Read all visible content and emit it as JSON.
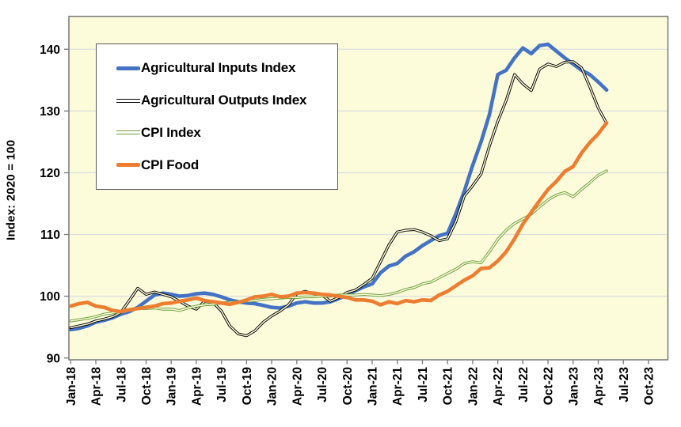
{
  "figure": {
    "background": "#FFFFFF",
    "plot_background": "#FCFCDB",
    "frame_color": "#7F7F7F",
    "grid_color": "#DCDCE0",
    "tick_color": "#7F7F7F",
    "legend_border_color": "#595959"
  },
  "chart_data": {
    "type": "line",
    "title": "",
    "ylabel": "Index: 2020 = 100",
    "ylim": [
      90,
      145.3
    ],
    "y_ticks": [
      90,
      100,
      110,
      120,
      130,
      140
    ],
    "x_frequency": "monthly",
    "x_start": "Jan-18",
    "x_end": "May-23",
    "x_tick_labels": [
      "Jan-18",
      "Apr-18",
      "Jul-18",
      "Oct-18",
      "Jan-19",
      "Apr-19",
      "Jul-19",
      "Oct-19",
      "Jan-20",
      "Apr-20",
      "Jul-20",
      "Oct-20",
      "Jan-21",
      "Apr-21",
      "Jul-21",
      "Oct-21",
      "Jan-22",
      "Apr-22",
      "Jul-22",
      "Oct-22",
      "Jan-23",
      "Apr-23",
      "Jul-23",
      "Oct-23"
    ],
    "grid": "horizontal",
    "legend_position": "top-left",
    "series": [
      {
        "name": "Agricultural Inputs Index",
        "color": "#4472C4",
        "style": "thick",
        "values": [
          94.6,
          94.8,
          95.2,
          95.8,
          96.1,
          96.5,
          97.1,
          97.5,
          98.2,
          99.2,
          100.2,
          100.5,
          100.3,
          100.0,
          100.1,
          100.4,
          100.5,
          100.3,
          99.9,
          99.4,
          99.1,
          98.9,
          98.8,
          98.5,
          98.2,
          98.1,
          98.4,
          98.9,
          99.1,
          98.9,
          98.9,
          99.1,
          99.6,
          100.2,
          100.9,
          101.5,
          102.0,
          103.8,
          104.9,
          105.3,
          106.5,
          107.2,
          108.2,
          109.0,
          109.8,
          110.2,
          113.4,
          117.0,
          121.2,
          125.0,
          129.4,
          135.9,
          136.6,
          138.6,
          140.2,
          139.3,
          140.6,
          140.8,
          139.7,
          138.6,
          137.6,
          136.6,
          135.9,
          134.7,
          133.4
        ]
      },
      {
        "name": "Agricultural Outputs Index",
        "color": "#000000",
        "style": "double",
        "values": [
          94.9,
          95.2,
          95.5,
          96.0,
          96.3,
          96.7,
          97.4,
          99.3,
          101.3,
          100.3,
          100.7,
          100.3,
          99.9,
          99.2,
          98.4,
          97.9,
          99.2,
          99.0,
          97.6,
          95.2,
          93.9,
          93.6,
          94.4,
          95.8,
          96.8,
          97.6,
          98.6,
          100.4,
          100.8,
          100.4,
          100.2,
          99.2,
          99.8,
          100.6,
          101.0,
          101.9,
          102.9,
          105.6,
          108.3,
          110.4,
          110.7,
          110.8,
          110.4,
          109.8,
          109.0,
          109.3,
          112.1,
          116.2,
          117.9,
          119.8,
          124.3,
          128.3,
          131.7,
          135.9,
          134.4,
          133.3,
          136.8,
          137.6,
          137.2,
          137.9,
          138.0,
          137.0,
          133.9,
          130.5,
          128.0
        ]
      },
      {
        "name": "CPI Index",
        "color": "#699B3C",
        "style": "double",
        "values": [
          96.0,
          96.2,
          96.4,
          96.7,
          97.1,
          97.3,
          97.5,
          97.7,
          98.0,
          98.0,
          98.1,
          97.9,
          97.9,
          97.7,
          98.1,
          98.4,
          98.6,
          98.7,
          98.9,
          99.0,
          99.1,
          99.2,
          99.3,
          99.5,
          99.6,
          99.7,
          99.8,
          99.8,
          99.9,
          99.9,
          100.0,
          100.0,
          100.2,
          100.2,
          100.2,
          100.3,
          100.2,
          100.1,
          100.3,
          100.6,
          101.1,
          101.4,
          102.0,
          102.3,
          103.0,
          103.7,
          104.4,
          105.3,
          105.6,
          105.4,
          107.2,
          109.2,
          110.7,
          111.8,
          112.5,
          113.3,
          114.5,
          115.6,
          116.4,
          116.8,
          116.1,
          117.3,
          118.4,
          119.6,
          120.3
        ]
      },
      {
        "name": "CPI Food",
        "color": "#ED7D31",
        "style": "thick",
        "values": [
          98.4,
          98.8,
          99.0,
          98.4,
          98.2,
          97.7,
          97.5,
          97.8,
          98.0,
          98.2,
          98.4,
          98.8,
          98.9,
          99.2,
          99.4,
          99.7,
          99.3,
          99.1,
          98.9,
          98.7,
          99.0,
          99.4,
          99.9,
          100.0,
          100.3,
          99.9,
          100.0,
          100.5,
          100.6,
          100.5,
          100.3,
          100.2,
          100.0,
          99.8,
          99.4,
          99.4,
          99.2,
          98.6,
          99.1,
          98.8,
          99.3,
          99.1,
          99.4,
          99.3,
          100.2,
          100.8,
          101.7,
          102.6,
          103.3,
          104.5,
          104.6,
          105.7,
          107.2,
          109.3,
          111.7,
          113.6,
          115.5,
          117.3,
          118.6,
          120.2,
          121.0,
          123.2,
          124.9,
          126.3,
          128.1
        ]
      }
    ]
  }
}
